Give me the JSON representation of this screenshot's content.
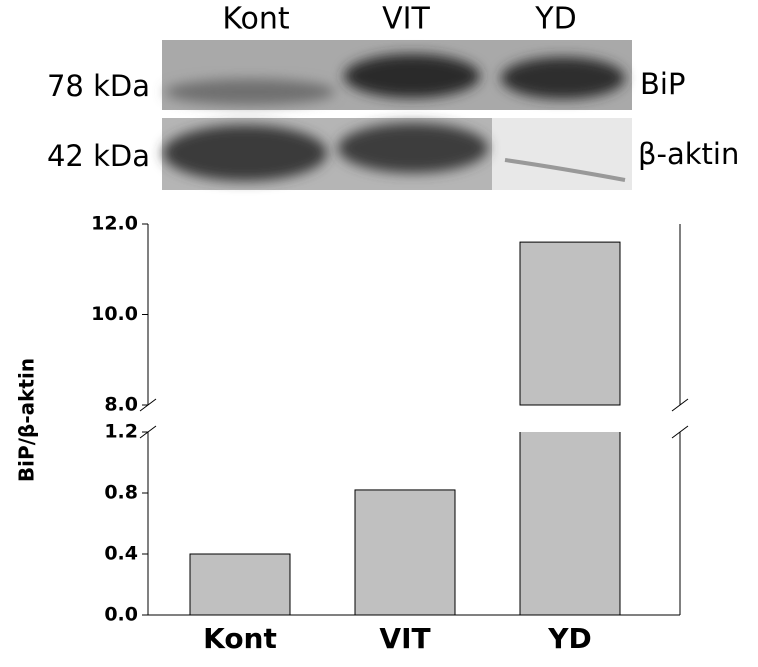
{
  "blot": {
    "lanes": [
      "Kont",
      "VIT",
      "YD"
    ],
    "bands": [
      {
        "size": "78 kDa",
        "protein": "BiP"
      },
      {
        "size": "42 kDa",
        "protein": "β-aktin"
      }
    ]
  },
  "chart_data": {
    "type": "bar",
    "y_label": "BiP/β-aktin",
    "categories": [
      "Kont",
      "VIT",
      "YD"
    ],
    "values": [
      0.4,
      0.82,
      11.6
    ],
    "color": "#c0c0c0",
    "segments": [
      {
        "ylim": [
          0,
          1.2
        ],
        "yticks": [
          {
            "value": 0,
            "label": "0.0"
          },
          {
            "value": 0.4,
            "label": "0.4"
          },
          {
            "value": 0.8,
            "label": "0.8"
          },
          {
            "value": 1.2,
            "label": "1.2"
          }
        ]
      },
      {
        "ylim": [
          8,
          12
        ],
        "yticks": [
          {
            "value": 8,
            "label": "8.0"
          },
          {
            "value": 10,
            "label": "10.0"
          },
          {
            "value": 12,
            "label": "12.0"
          }
        ]
      }
    ]
  }
}
